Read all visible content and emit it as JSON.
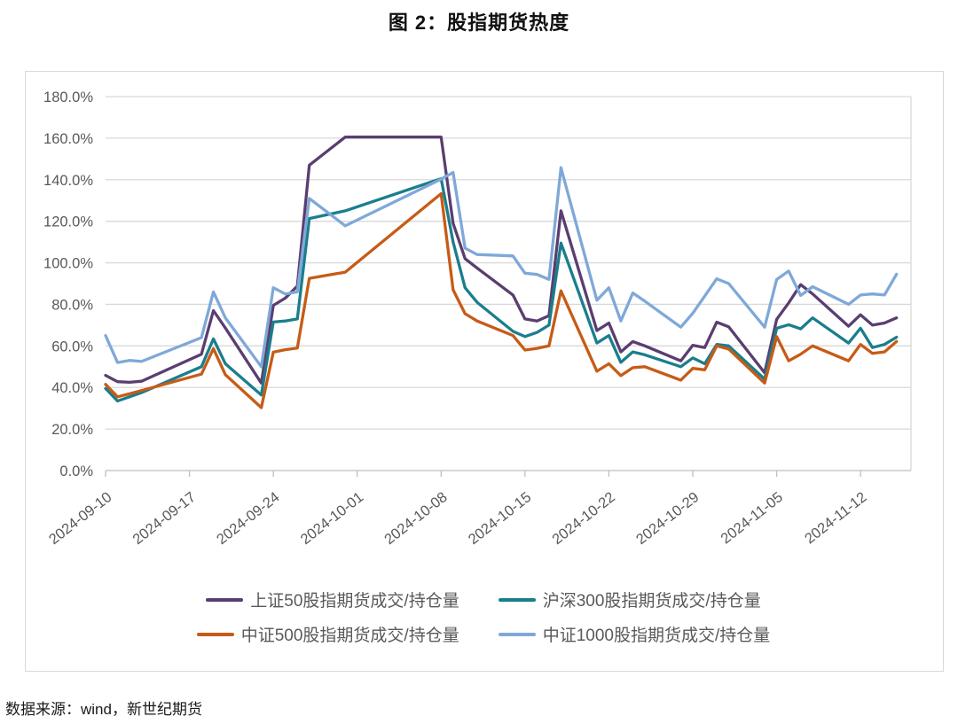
{
  "page": {
    "source_note": "数据来源：wind，新世纪期货"
  },
  "chart_data": {
    "type": "line",
    "title": "图 2：股指期货热度",
    "grid": "horizontal",
    "legend_position": "bottom",
    "ylim": [
      0,
      180
    ],
    "y_tick_step": 20,
    "y_tick_labels": [
      "0.0%",
      "20.0%",
      "40.0%",
      "60.0%",
      "80.0%",
      "100.0%",
      "120.0%",
      "140.0%",
      "160.0%",
      "180.0%"
    ],
    "x_tick_labels": [
      "2024-09-10",
      "2024-09-17",
      "2024-09-24",
      "2024-10-01",
      "2024-10-08",
      "2024-10-15",
      "2024-10-22",
      "2024-10-29",
      "2024-11-05",
      "2024-11-12"
    ],
    "x_dates": [
      "2024-09-10",
      "2024-09-11",
      "2024-09-12",
      "2024-09-13",
      "2024-09-18",
      "2024-09-19",
      "2024-09-20",
      "2024-09-23",
      "2024-09-24",
      "2024-09-25",
      "2024-09-26",
      "2024-09-27",
      "2024-09-30",
      "2024-10-08",
      "2024-10-09",
      "2024-10-10",
      "2024-10-11",
      "2024-10-14",
      "2024-10-15",
      "2024-10-16",
      "2024-10-17",
      "2024-10-18",
      "2024-10-21",
      "2024-10-22",
      "2024-10-23",
      "2024-10-24",
      "2024-10-25",
      "2024-10-28",
      "2024-10-29",
      "2024-10-30",
      "2024-10-31",
      "2024-11-01",
      "2024-11-04",
      "2024-11-05",
      "2024-11-06",
      "2024-11-07",
      "2024-11-08",
      "2024-11-11",
      "2024-11-12",
      "2024-11-13",
      "2024-11-14",
      "2024-11-15"
    ],
    "series": [
      {
        "name": "上证50股指期货成交/持仓量",
        "color": "#5A3E70",
        "values": [
          45.8,
          42.8,
          42.5,
          43.0,
          56.0,
          77.0,
          68.6,
          42.1,
          79.5,
          83.0,
          88.8,
          147.0,
          160.5,
          160.5,
          119.0,
          102.0,
          97.5,
          84.5,
          73.0,
          72.0,
          74.5,
          125.0,
          67.4,
          71.0,
          57.1,
          62.1,
          60.0,
          52.8,
          60.3,
          59.2,
          71.4,
          69.2,
          47.1,
          72.8,
          80.7,
          89.5,
          85.0,
          69.5,
          75.0,
          70.0,
          71.0,
          73.5
        ]
      },
      {
        "name": "沪深300股指期货成交/持仓量",
        "color": "#1A7E8C",
        "values": [
          39.5,
          33.5,
          35.5,
          37.5,
          50.0,
          63.4,
          51.4,
          36.4,
          71.5,
          72.0,
          73.0,
          121.3,
          125.0,
          140.5,
          110.0,
          88.0,
          81.0,
          67.0,
          64.5,
          66.5,
          70.0,
          109.5,
          61.4,
          65.0,
          52.1,
          57.1,
          55.7,
          50.0,
          54.2,
          51.4,
          60.7,
          60.0,
          44.0,
          68.5,
          70.2,
          68.2,
          73.5,
          61.4,
          68.5,
          59.2,
          60.7,
          64.2
        ]
      },
      {
        "name": "中证500股指期货成交/持仓量",
        "color": "#C75B16",
        "values": [
          41.5,
          35.5,
          37.0,
          38.5,
          46.4,
          58.7,
          46.1,
          30.3,
          57.0,
          58.2,
          59.0,
          92.5,
          95.5,
          133.3,
          87.0,
          75.5,
          72.0,
          65.0,
          58.0,
          58.8,
          60.0,
          86.5,
          47.8,
          51.4,
          45.7,
          49.5,
          50.0,
          43.5,
          49.2,
          48.5,
          60.0,
          58.5,
          42.1,
          64.5,
          52.8,
          56.0,
          60.0,
          52.8,
          60.7,
          56.4,
          57.1,
          62.1
        ]
      },
      {
        "name": "中证1000股指期货成交/持仓量",
        "color": "#7FA8D8",
        "values": [
          65.0,
          52.0,
          53.0,
          52.5,
          64.0,
          86.0,
          73.5,
          50.0,
          88.0,
          85.0,
          86.0,
          131.0,
          117.8,
          140.3,
          143.5,
          107.0,
          104.0,
          103.3,
          95.0,
          94.4,
          92.0,
          145.8,
          82.0,
          88.0,
          72.0,
          85.5,
          81.5,
          69.0,
          75.7,
          84.0,
          92.3,
          90.0,
          69.0,
          92.0,
          96.0,
          84.3,
          88.5,
          80.0,
          84.5,
          85.0,
          84.5,
          94.5
        ]
      }
    ]
  }
}
